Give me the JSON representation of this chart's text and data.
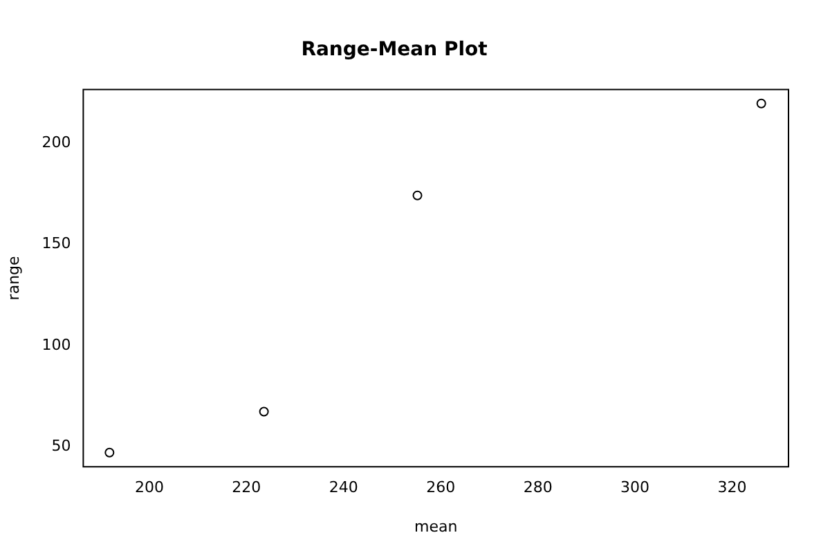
{
  "chart_data": {
    "type": "scatter",
    "title": "Range-Mean Plot",
    "xlabel": "mean",
    "ylabel": "range",
    "x": [
      191.8,
      223.6,
      255.2,
      326.0
    ],
    "values": [
      47.2,
      67.4,
      174.2,
      219.6
    ],
    "color": "#000000",
    "marker": "circle",
    "grid": false,
    "legend": false,
    "xlim": [
      186.4,
      331.6
    ],
    "xticks": [
      200,
      220,
      240,
      260,
      280,
      300,
      320
    ],
    "ylim": [
      40.2,
      226.5
    ],
    "yticks": [
      50,
      100,
      150,
      200
    ]
  }
}
